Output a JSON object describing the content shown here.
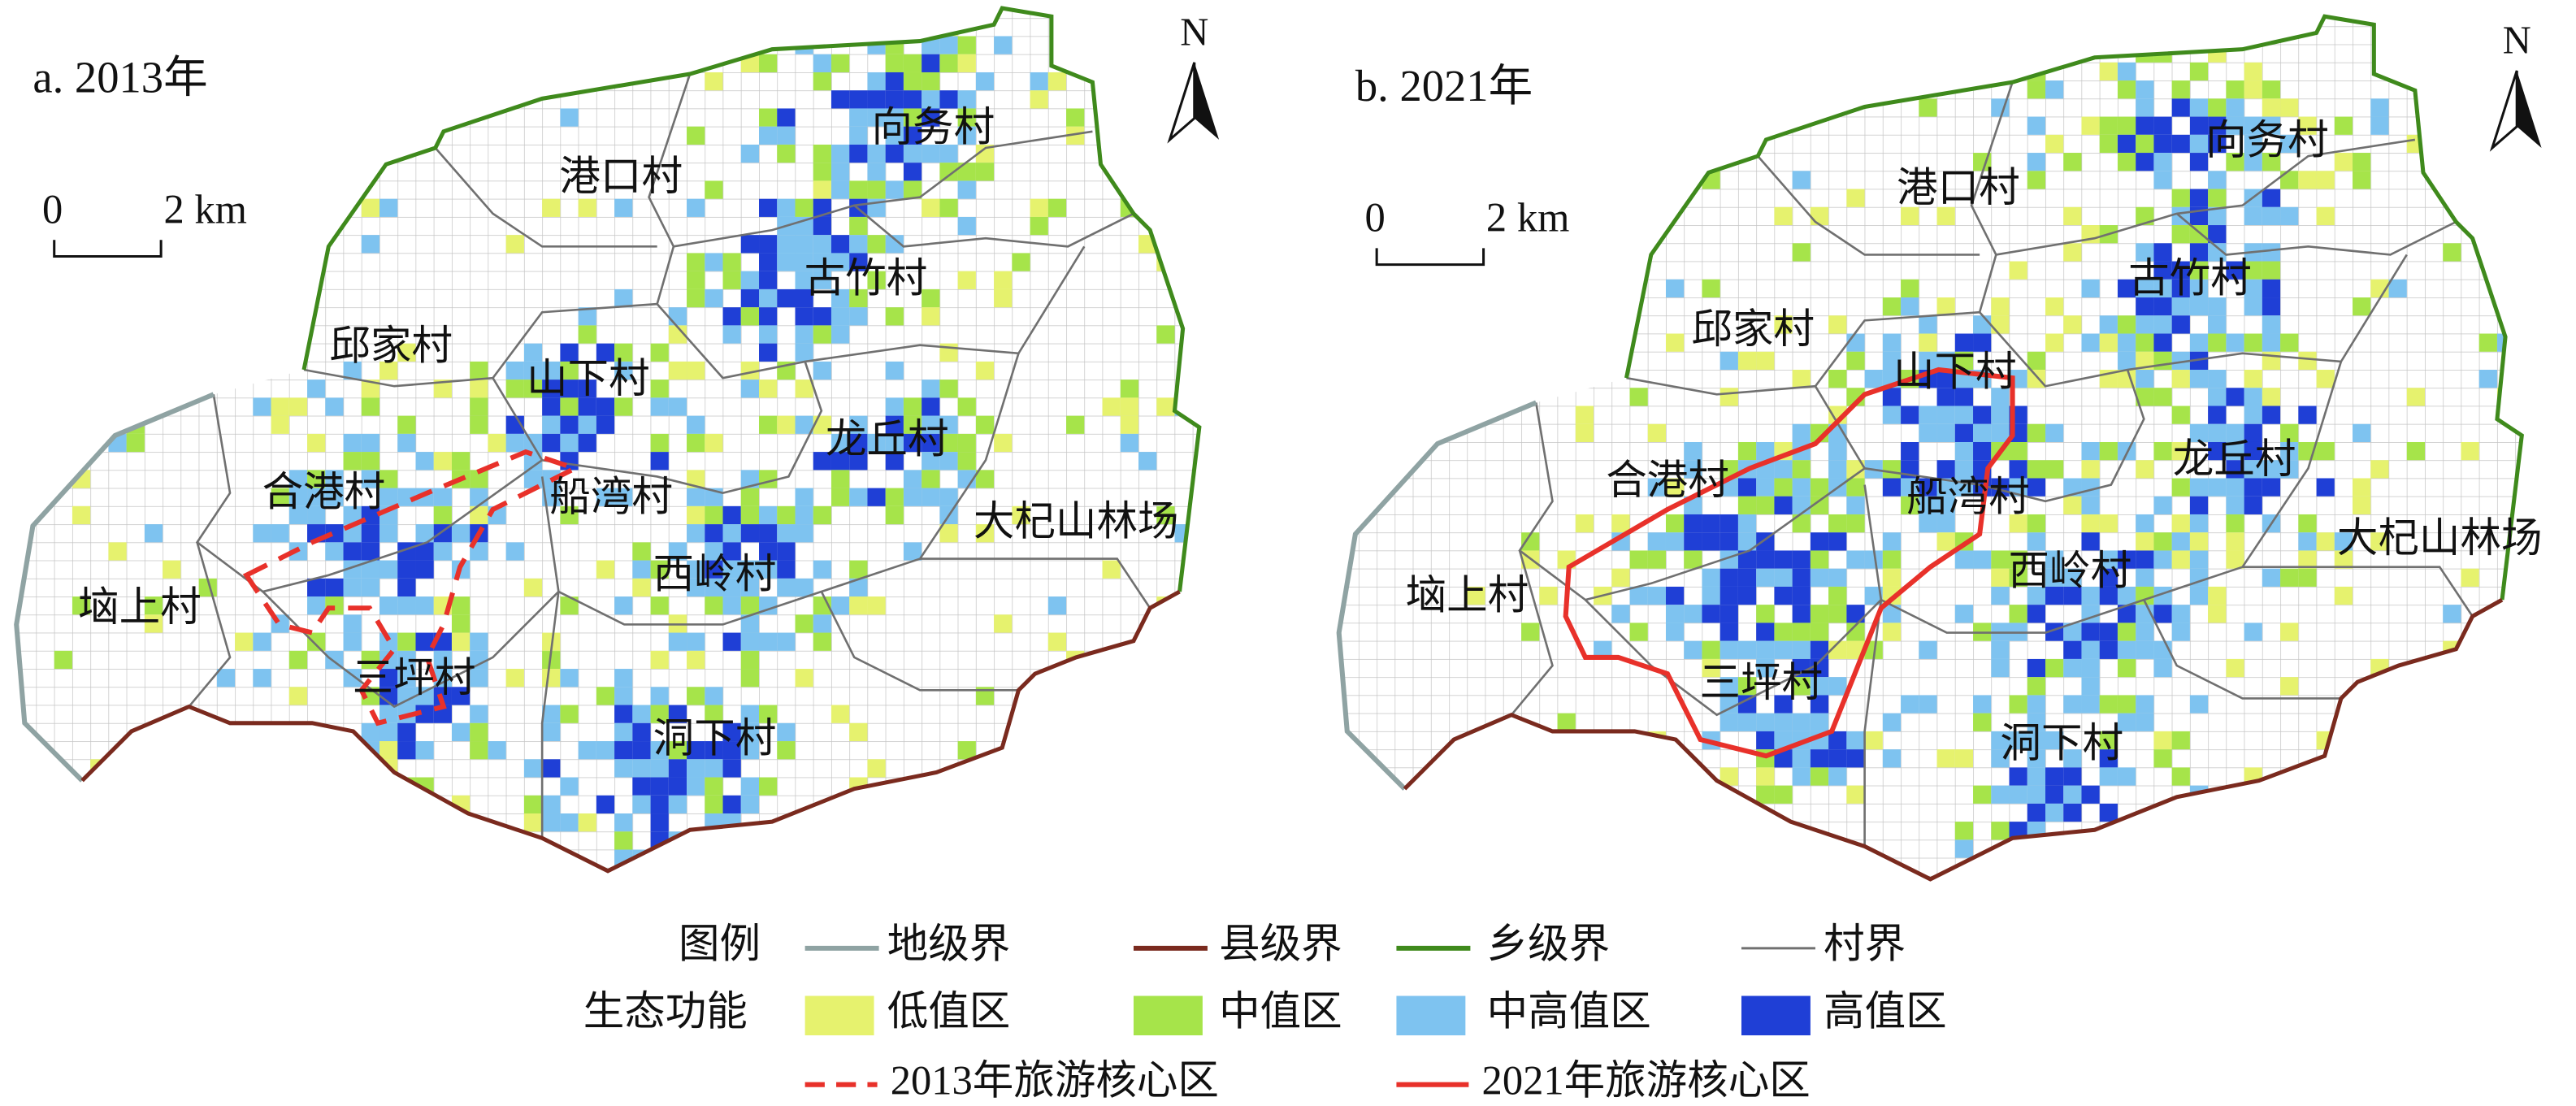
{
  "panels": [
    {
      "title": "a. 2013年",
      "villages": [
        "向务村",
        "港口村",
        "古竹村",
        "邱家村",
        "山下村",
        "龙丘村",
        "合港村",
        "船湾村",
        "大杞山林场",
        "西岭村",
        "垴上村",
        "三坪村",
        "洞下村"
      ]
    },
    {
      "title": "b. 2021年",
      "villages": [
        "向务村",
        "港口村",
        "古竹村",
        "邱家村",
        "山下村",
        "龙丘村",
        "合港村",
        "船湾村",
        "大杞山林场",
        "西岭村",
        "垴上村",
        "三坪村",
        "洞下村"
      ]
    }
  ],
  "north": "N",
  "scale_bar": {
    "zero": "0",
    "distance": "2 km"
  },
  "legend": {
    "title": "图例",
    "boundaries": [
      {
        "label": "地级界",
        "color": "#8fa3a3"
      },
      {
        "label": "县级界",
        "color": "#7a2a1e"
      },
      {
        "label": "乡级界",
        "color": "#3f8a1c"
      },
      {
        "label": "村界",
        "color": "#707070"
      }
    ],
    "eco_title": "生态功能",
    "eco": [
      {
        "label": "低值区",
        "color": "#e6f26e"
      },
      {
        "label": "中值区",
        "color": "#a6e44a"
      },
      {
        "label": "中高值区",
        "color": "#7ec3f0"
      },
      {
        "label": "高值区",
        "color": "#1f3fd6"
      }
    ],
    "core": [
      {
        "label": "2013年旅游核心区",
        "color": "#e8312a",
        "dashed": true
      },
      {
        "label": "2021年旅游核心区",
        "color": "#e8312a",
        "dashed": false
      }
    ]
  }
}
